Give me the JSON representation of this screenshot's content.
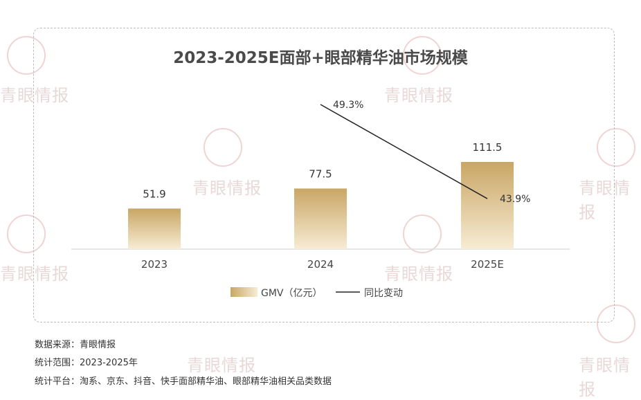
{
  "watermark": "青眼情报",
  "chart_data": {
    "type": "bar",
    "title": "2023-2025E面部+眼部精华油市场规模",
    "categories": [
      "2023",
      "2024",
      "2025E"
    ],
    "series": [
      {
        "name": "GMV（亿元）",
        "type": "bar",
        "values": [
          51.9,
          77.5,
          111.5
        ],
        "labels": [
          "51.9",
          "77.5",
          "111.5"
        ],
        "color": "#c9a96a"
      },
      {
        "name": "同比变动",
        "type": "line",
        "values": [
          null,
          49.3,
          43.9
        ],
        "labels": [
          "",
          "49.3%",
          "43.9%"
        ],
        "color": "#222222"
      }
    ],
    "grid": false,
    "legend": "bottom"
  },
  "notes": [
    "数据来源：青眼情报",
    "统计范围：2023-2025年",
    "统计平台：淘系、京东、抖音、快手面部精华油、眼部精华油相关品类数据"
  ]
}
